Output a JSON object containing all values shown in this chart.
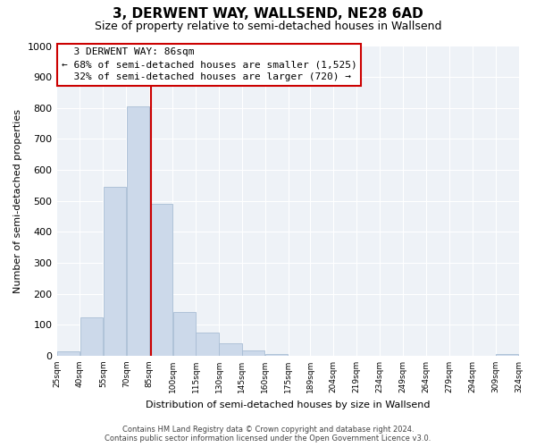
{
  "title": "3, DERWENT WAY, WALLSEND, NE28 6AD",
  "subtitle": "Size of property relative to semi-detached houses in Wallsend",
  "xlabel": "Distribution of semi-detached houses by size in Wallsend",
  "ylabel": "Number of semi-detached properties",
  "footer_line1": "Contains HM Land Registry data © Crown copyright and database right 2024.",
  "footer_line2": "Contains public sector information licensed under the Open Government Licence v3.0.",
  "annotation_title": "3 DERWENT WAY: 86sqm",
  "annotation_line1": "← 68% of semi-detached houses are smaller (1,525)",
  "annotation_line2": "32% of semi-detached houses are larger (720) →",
  "property_size": 86,
  "bar_edges": [
    25,
    40,
    55,
    70,
    85,
    100,
    115,
    130,
    145,
    160,
    175,
    189,
    204,
    219,
    234,
    249,
    264,
    279,
    294,
    309,
    324
  ],
  "bar_heights": [
    15,
    125,
    545,
    805,
    490,
    140,
    75,
    40,
    18,
    5,
    0,
    0,
    0,
    0,
    0,
    0,
    0,
    0,
    0,
    5
  ],
  "bar_color": "#ccd9ea",
  "bar_edgecolor": "#a8bdd4",
  "vline_color": "#cc0000",
  "vline_x": 86,
  "annotation_box_edgecolor": "#cc0000",
  "annotation_box_facecolor": "#ffffff",
  "ylim": [
    0,
    1000
  ],
  "xlim": [
    25,
    324
  ],
  "tick_labels": [
    "25sqm",
    "40sqm",
    "55sqm",
    "70sqm",
    "85sqm",
    "100sqm",
    "115sqm",
    "130sqm",
    "145sqm",
    "160sqm",
    "175sqm",
    "189sqm",
    "204sqm",
    "219sqm",
    "234sqm",
    "249sqm",
    "264sqm",
    "279sqm",
    "294sqm",
    "309sqm",
    "324sqm"
  ],
  "tick_positions": [
    25,
    40,
    55,
    70,
    85,
    100,
    115,
    130,
    145,
    160,
    175,
    189,
    204,
    219,
    234,
    249,
    264,
    279,
    294,
    309,
    324
  ],
  "yticks": [
    0,
    100,
    200,
    300,
    400,
    500,
    600,
    700,
    800,
    900,
    1000
  ],
  "background_color": "#ffffff",
  "plot_background_color": "#eef2f7",
  "title_fontsize": 11,
  "subtitle_fontsize": 9,
  "xlabel_fontsize": 8,
  "ylabel_fontsize": 8,
  "xtick_fontsize": 6.5,
  "ytick_fontsize": 8,
  "annotation_fontsize": 8,
  "footer_fontsize": 6
}
